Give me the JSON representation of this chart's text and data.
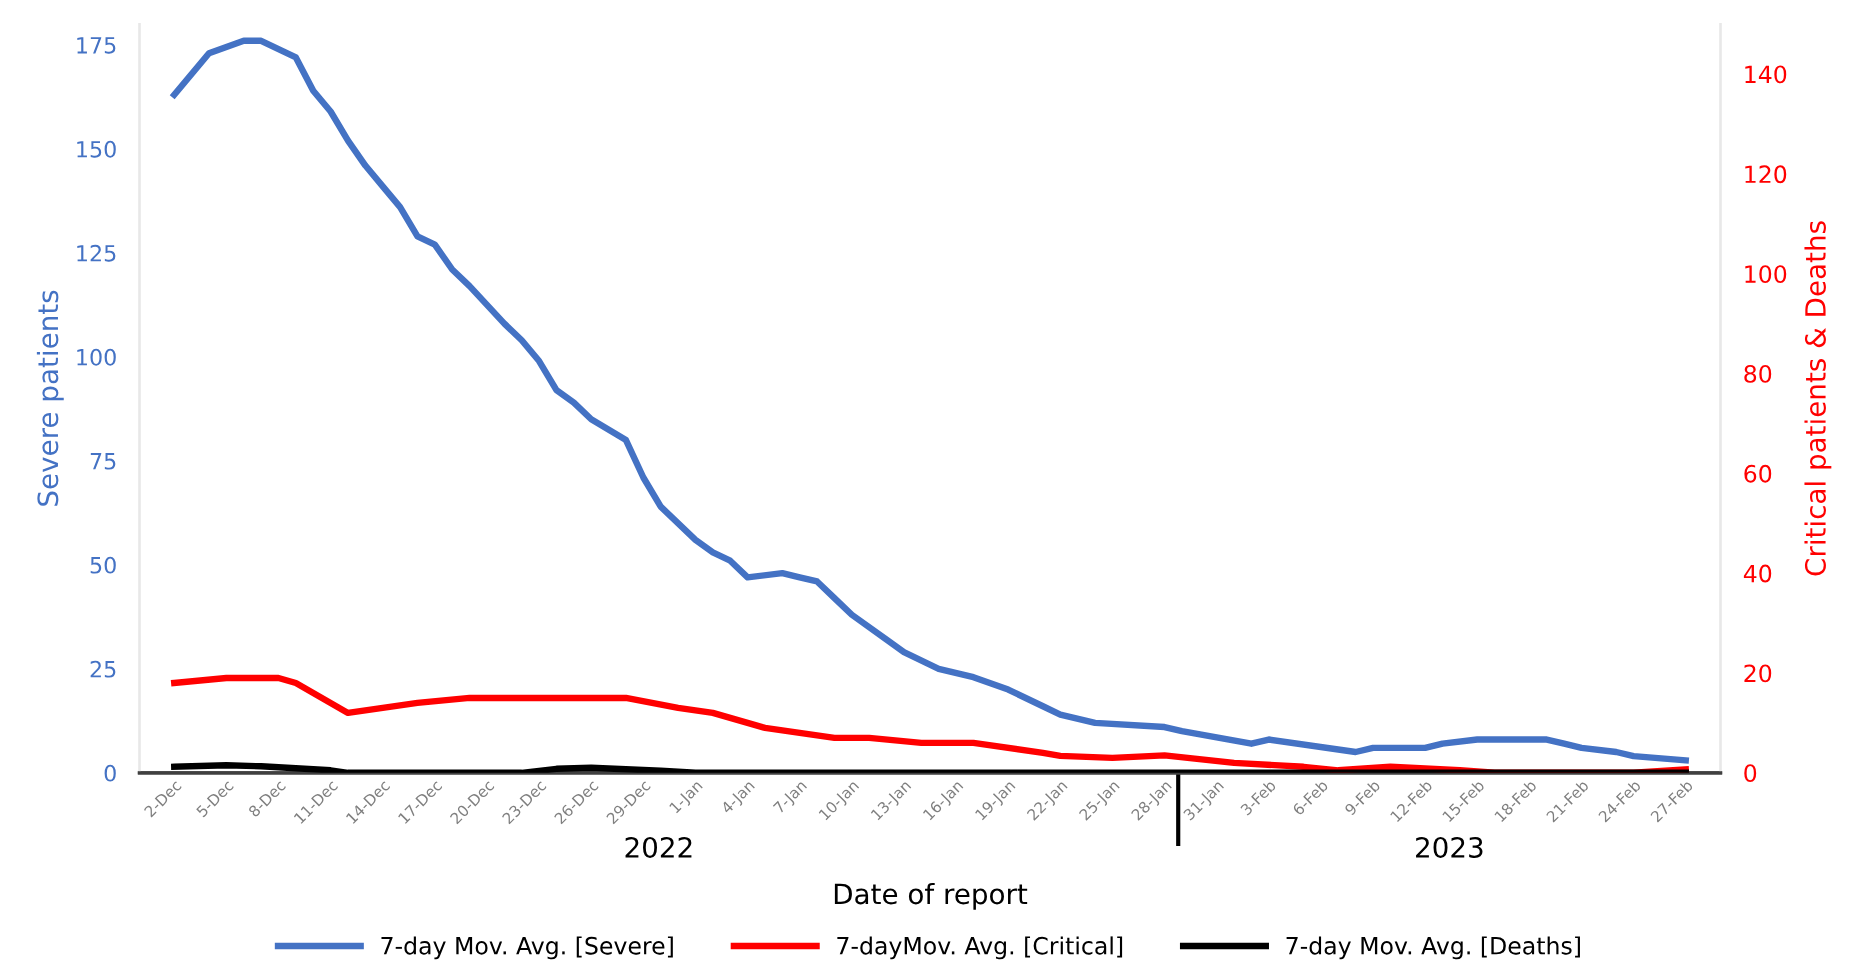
{
  "chart_data": {
    "type": "line",
    "xlabel": "Date of report",
    "ylabel": "Severe patients",
    "y2label": "Critical patients & Deaths",
    "annotations": [
      "2022",
      "2023"
    ],
    "xlim": [
      "2022-11-30",
      "2023-03-01"
    ],
    "xticks": [
      {
        "value": "2022-12-02",
        "label": "2-Dec"
      },
      {
        "value": "2022-12-05",
        "label": "5-Dec"
      },
      {
        "value": "2022-12-08",
        "label": "8-Dec"
      },
      {
        "value": "2022-12-11",
        "label": "11-Dec"
      },
      {
        "value": "2022-12-14",
        "label": "14-Dec"
      },
      {
        "value": "2022-12-17",
        "label": "17-Dec"
      },
      {
        "value": "2022-12-20",
        "label": "20-Dec"
      },
      {
        "value": "2022-12-23",
        "label": "23-Dec"
      },
      {
        "value": "2022-12-26",
        "label": "26-Dec"
      },
      {
        "value": "2022-12-29",
        "label": "29-Dec"
      },
      {
        "value": "2023-01-01",
        "label": "1-Jan"
      },
      {
        "value": "2023-01-04",
        "label": "4-Jan"
      },
      {
        "value": "2023-01-07",
        "label": "7-Jan"
      },
      {
        "value": "2023-01-10",
        "label": "10-Jan"
      },
      {
        "value": "2023-01-13",
        "label": "13-Jan"
      },
      {
        "value": "2023-01-16",
        "label": "16-Jan"
      },
      {
        "value": "2023-01-19",
        "label": "19-Jan"
      },
      {
        "value": "2023-01-22",
        "label": "22-Jan"
      },
      {
        "value": "2023-01-25",
        "label": "25-Jan"
      },
      {
        "value": "2023-01-28",
        "label": "28-Jan"
      },
      {
        "value": "2023-01-31",
        "label": "31-Jan"
      },
      {
        "value": "2023-02-03",
        "label": "3-Feb"
      },
      {
        "value": "2023-02-06",
        "label": "6-Feb"
      },
      {
        "value": "2023-02-09",
        "label": "9-Feb"
      },
      {
        "value": "2023-02-12",
        "label": "12-Feb"
      },
      {
        "value": "2023-02-15",
        "label": "15-Feb"
      },
      {
        "value": "2023-02-18",
        "label": "18-Feb"
      },
      {
        "value": "2023-02-21",
        "label": "21-Feb"
      },
      {
        "value": "2023-02-24",
        "label": "24-Feb"
      },
      {
        "value": "2023-02-27",
        "label": "27-Feb"
      }
    ],
    "ylim": [
      0,
      180
    ],
    "yticks": [
      0,
      25,
      50,
      75,
      100,
      125,
      150,
      175
    ],
    "y2lim": [
      0,
      150
    ],
    "y2ticks": [
      0,
      20,
      40,
      60,
      80,
      100,
      120,
      140
    ],
    "grid": false,
    "legend": "bottom",
    "marker": "none",
    "line_style": "solid",
    "series": [
      {
        "name": "7-day Mov. Avg. [Severe]",
        "color": "#4472c4",
        "x": [
          "2022-12-02",
          "2022-12-04",
          "2022-12-06",
          "2022-12-07",
          "2022-12-09",
          "2022-12-10",
          "2022-12-11",
          "2022-12-12",
          "2022-12-13",
          "2022-12-14",
          "2022-12-15",
          "2022-12-16",
          "2022-12-17",
          "2022-12-18",
          "2022-12-19",
          "2022-12-21",
          "2022-12-22",
          "2022-12-23",
          "2022-12-24",
          "2022-12-25",
          "2022-12-26",
          "2022-12-28",
          "2022-12-29",
          "2022-12-30",
          "2023-01-01",
          "2023-01-02",
          "2023-01-03",
          "2023-01-04",
          "2023-01-06",
          "2023-01-07",
          "2023-01-08",
          "2023-01-09",
          "2023-01-10",
          "2023-01-12",
          "2023-01-13",
          "2023-01-15",
          "2023-01-17",
          "2023-01-19",
          "2023-01-21",
          "2023-01-22",
          "2023-01-24",
          "2023-01-28",
          "2023-01-29",
          "2023-02-02",
          "2023-02-03",
          "2023-02-08",
          "2023-02-09",
          "2023-02-12",
          "2023-02-13",
          "2023-02-15",
          "2023-02-19",
          "2023-02-20",
          "2023-02-21",
          "2023-02-23",
          "2023-02-24",
          "2023-02-27"
        ],
        "values": [
          163,
          173,
          176,
          176,
          172,
          164,
          159,
          152,
          146,
          141,
          136,
          129,
          127,
          121,
          117,
          108,
          104,
          99,
          92,
          89,
          85,
          80,
          71,
          64,
          56,
          53,
          51,
          47,
          48,
          47,
          46,
          42,
          38,
          32,
          29,
          25,
          23,
          20,
          16,
          14,
          12,
          11,
          10,
          7,
          8,
          5,
          6,
          6,
          7,
          8,
          8,
          7,
          6,
          5,
          4,
          3
        ]
      },
      {
        "name": "7-dayMov. Avg. [Critical]",
        "color": "#ff0000",
        "axis": "y2",
        "x": [
          "2022-12-02",
          "2022-12-05",
          "2022-12-07",
          "2022-12-08",
          "2022-12-09",
          "2022-12-12",
          "2022-12-14",
          "2022-12-16",
          "2022-12-19",
          "2022-12-21",
          "2022-12-24",
          "2022-12-27",
          "2022-12-28",
          "2022-12-31",
          "2023-01-02",
          "2023-01-04",
          "2023-01-05",
          "2023-01-07",
          "2023-01-09",
          "2023-01-11",
          "2023-01-14",
          "2023-01-17",
          "2023-01-21",
          "2023-01-22",
          "2023-01-25",
          "2023-01-28",
          "2023-02-01",
          "2023-02-05",
          "2023-02-07",
          "2023-02-10",
          "2023-02-14",
          "2023-02-16",
          "2023-02-24",
          "2023-02-27"
        ],
        "values": [
          18,
          19,
          19,
          19,
          18,
          12,
          13,
          14,
          15,
          15,
          15,
          15,
          15,
          13,
          12,
          10,
          9,
          8,
          7,
          7,
          6,
          6,
          4,
          3.4,
          3,
          3.5,
          2,
          1.2,
          0.5,
          1.2,
          0.5,
          0,
          0,
          0.7
        ]
      },
      {
        "name": "7-day Mov. Avg. [Deaths]",
        "color": "#000000",
        "axis": "y2",
        "x": [
          "2022-12-02",
          "2022-12-05",
          "2022-12-07",
          "2022-12-09",
          "2022-12-11",
          "2022-12-12",
          "2022-12-22",
          "2022-12-24",
          "2022-12-26",
          "2022-12-28",
          "2022-12-30",
          "2023-01-01",
          "2023-02-27"
        ],
        "values": [
          1.2,
          1.5,
          1.3,
          0.9,
          0.5,
          0,
          0,
          0.8,
          1,
          0.7,
          0.4,
          0,
          0
        ]
      }
    ]
  }
}
